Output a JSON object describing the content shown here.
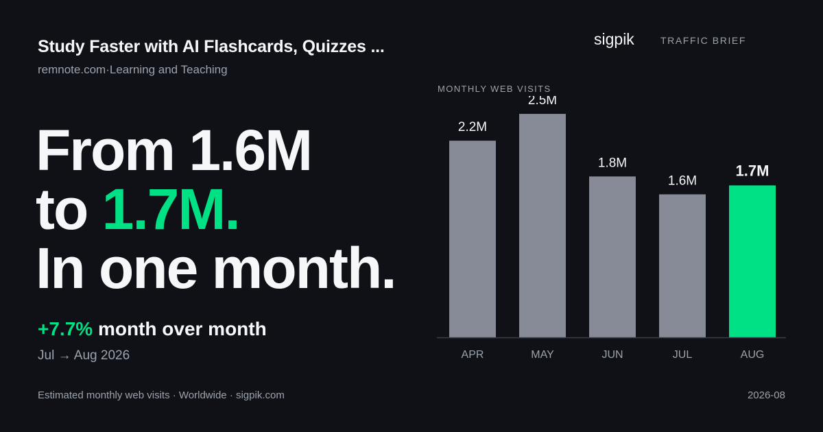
{
  "header": {
    "title": "Study Faster with AI Flashcards, Quizzes ...",
    "domain": "remnote.com",
    "separator": "·",
    "category": "Learning and Teaching"
  },
  "headline": {
    "line1": "From 1.6M",
    "line2_prefix": "to ",
    "line2_accent": "1.7M.",
    "line3": "In one month."
  },
  "change": {
    "value": "+7.7%",
    "label": " month over month"
  },
  "period": "Jul → Aug 2026",
  "brand": {
    "name": "sigpik",
    "tag": "TRAFFIC BRIEF"
  },
  "footer": {
    "source": "Estimated monthly web visits · Worldwide · sigpik.com",
    "date": "2026-08"
  },
  "colors": {
    "background": "#0f1116",
    "accent": "#00e084",
    "bar": "#878b98",
    "muted_text": "#9ca3af"
  },
  "chart_data": {
    "type": "bar",
    "title": "MONTHLY WEB VISITS",
    "categories": [
      "APR",
      "MAY",
      "JUN",
      "JUL",
      "AUG"
    ],
    "values": [
      2.2,
      2.5,
      1.8,
      1.6,
      1.7
    ],
    "value_labels": [
      "2.2M",
      "2.5M",
      "1.8M",
      "1.6M",
      "1.7M"
    ],
    "unit": "M",
    "highlight_index": 4,
    "ylim": [
      0,
      2.7
    ],
    "grid": false,
    "legend": "none"
  }
}
